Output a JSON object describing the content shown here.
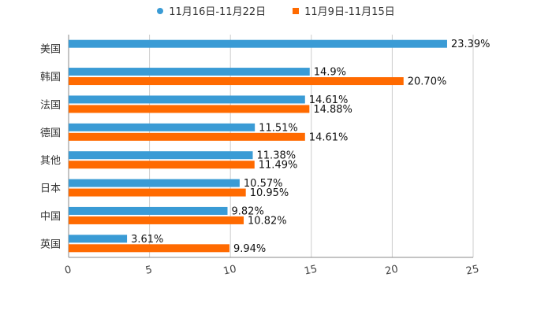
{
  "chart_data": {
    "type": "bar",
    "orientation": "horizontal",
    "categories": [
      "美国",
      "韩国",
      "法国",
      "德国",
      "其他",
      "日本",
      "中国",
      "英国"
    ],
    "series": [
      {
        "name": "11月16日-11月22日",
        "color": "#3a9bd5",
        "values": [
          23.39,
          14.9,
          14.61,
          11.51,
          11.38,
          10.57,
          9.82,
          3.61
        ],
        "labels": [
          "23.39%",
          "14.9%",
          "14.61%",
          "11.51%",
          "11.38%",
          "10.57%",
          "9.82%",
          "3.61%"
        ]
      },
      {
        "name": "11月9日-11月15日",
        "color": "#ff6a00",
        "values": [
          null,
          20.7,
          14.88,
          14.61,
          11.49,
          10.95,
          10.82,
          9.94
        ],
        "labels": [
          "",
          "20.70%",
          "14.88%",
          "14.61%",
          "11.49%",
          "10.95%",
          "10.82%",
          "9.94%"
        ]
      }
    ],
    "xlim": [
      0,
      25
    ],
    "xticks": [
      "0",
      "5",
      "10",
      "15",
      "20",
      "25"
    ],
    "grid": true,
    "legend_position": "top-center",
    "title": "",
    "xlabel": "",
    "ylabel": ""
  }
}
